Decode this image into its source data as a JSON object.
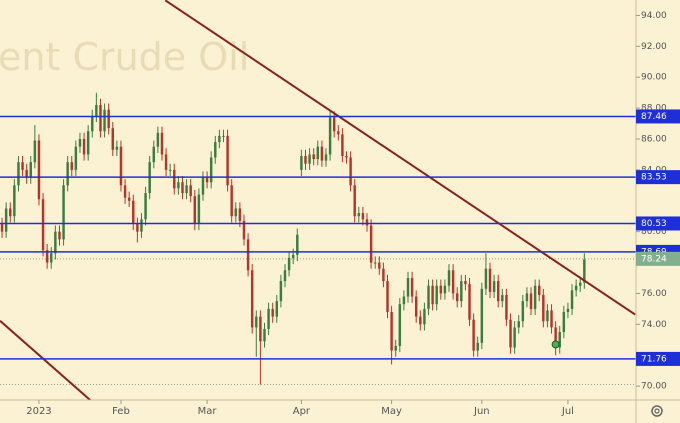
{
  "chart_data": {
    "type": "candlestick",
    "watermark": "ent Crude Oil",
    "up_color": "#3b7d3f",
    "down_color": "#b3362a",
    "level_color": "#1f2fd8",
    "trend_color": "#8b1e1e",
    "last_color": "#82b08f",
    "ylim": [
      69.1,
      95
    ],
    "yticks": [
      {
        "value": 70,
        "label": "70.00"
      },
      {
        "value": 74,
        "label": "74.00"
      },
      {
        "value": 76,
        "label": "76.00"
      },
      {
        "value": 80,
        "label": "80.00"
      },
      {
        "value": 84,
        "label": "84.00"
      },
      {
        "value": 86,
        "label": "86.00"
      },
      {
        "value": 88,
        "label": "88.00"
      },
      {
        "value": 90,
        "label": "90.00"
      },
      {
        "value": 92,
        "label": "92.00"
      },
      {
        "value": 94,
        "label": "94.00"
      }
    ],
    "xlim": [
      -0.5,
      154.6
    ],
    "xticks": [
      {
        "value": 9,
        "label": "2023"
      },
      {
        "value": 29,
        "label": "Feb"
      },
      {
        "value": 50,
        "label": "Mar"
      },
      {
        "value": 73,
        "label": "Apr"
      },
      {
        "value": 95,
        "label": "May"
      },
      {
        "value": 117,
        "label": "Jun"
      },
      {
        "value": 138,
        "label": "Jul"
      }
    ],
    "levels": [
      87.46,
      83.53,
      80.53,
      78.69,
      71.76
    ],
    "last_price": 78.24,
    "period_low": 70.1,
    "marker": {
      "x": 135,
      "y": 72.7
    },
    "trendlines": [
      {
        "from": [
          39.8,
          94.98
        ],
        "to": [
          154.4,
          74.63
        ]
      },
      {
        "from": [
          -0.5,
          74.23
        ],
        "to": [
          28.8,
          67.39
        ]
      }
    ],
    "open": [
      80.5,
      80.0,
      81.5,
      81.0,
      83.0,
      84.5,
      84.0,
      83.5,
      84.5,
      85.9,
      82.1,
      78.8,
      78.0,
      78.6,
      80.0,
      79.5,
      83.0,
      84.5,
      84.0,
      85.5,
      86.0,
      85.0,
      86.5,
      87.5,
      88.2,
      86.5,
      87.9,
      86.7,
      85.3,
      85.5,
      83.0,
      82.2,
      82.0,
      80.5,
      80.0,
      80.8,
      82.5,
      84.5,
      85.5,
      86.4,
      85.0,
      84.0,
      84.0,
      82.8,
      83.2,
      82.5,
      83.0,
      82.3,
      80.5,
      82.4,
      83.5,
      83.2,
      84.8,
      85.8,
      86.2,
      86.2,
      83.0,
      81.0,
      81.5,
      80.7,
      79.5,
      77.5,
      73.8,
      74.5,
      72.9,
      73.7,
      75.0,
      74.5,
      75.5,
      76.8,
      77.5,
      78.3,
      78.5,
      84.0,
      84.9,
      84.4,
      85.0,
      84.7,
      85.5,
      84.6,
      85.0,
      87.4,
      86.5,
      86.3,
      84.9,
      84.8,
      83.0,
      81.0,
      81.2,
      80.8,
      80.4,
      78.0,
      78.0,
      77.6,
      76.8,
      74.8,
      72.3,
      72.6,
      75.3,
      75.8,
      77.0,
      75.8,
      74.5,
      74.0,
      75.0,
      76.5,
      75.3,
      76.5,
      76.0,
      76.5,
      77.5,
      76.0,
      75.5,
      76.8,
      76.6,
      74.3,
      72.3,
      72.8,
      76.3,
      77.6,
      76.1,
      76.8,
      75.5,
      75.9,
      74.3,
      72.5,
      73.8,
      74.2,
      75.5,
      76.0,
      75.0,
      76.5,
      75.9,
      74.2,
      74.9,
      73.8,
      72.5,
      73.5,
      74.8,
      75.0,
      76.2,
      76.5,
      76.7
    ],
    "high": [
      80.9,
      81.9,
      81.9,
      83.4,
      84.9,
      84.9,
      84.4,
      84.9,
      86.9,
      86.3,
      82.5,
      79.2,
      79.0,
      80.4,
      80.4,
      83.4,
      84.9,
      84.9,
      85.9,
      86.4,
      86.4,
      86.9,
      87.9,
      89.0,
      88.6,
      88.3,
      88.3,
      87.1,
      85.9,
      85.9,
      83.4,
      82.6,
      82.4,
      80.9,
      81.2,
      82.9,
      84.9,
      85.9,
      86.8,
      86.8,
      85.4,
      84.4,
      84.4,
      83.6,
      83.6,
      83.4,
      83.4,
      82.7,
      82.8,
      83.9,
      83.9,
      85.2,
      86.2,
      86.6,
      86.6,
      86.6,
      83.4,
      81.9,
      81.9,
      81.1,
      79.9,
      77.9,
      74.9,
      74.9,
      74.1,
      75.4,
      75.4,
      75.9,
      77.2,
      77.9,
      78.7,
      78.9,
      80.2,
      85.3,
      85.3,
      85.4,
      85.4,
      85.9,
      85.9,
      85.4,
      87.8,
      87.8,
      86.9,
      86.7,
      85.2,
      85.2,
      83.4,
      81.6,
      81.6,
      81.2,
      80.8,
      78.4,
      78.4,
      78.0,
      77.2,
      75.2,
      73.0,
      75.7,
      76.2,
      77.4,
      77.4,
      76.2,
      74.9,
      75.4,
      76.9,
      76.9,
      76.9,
      76.9,
      76.9,
      77.9,
      77.9,
      76.4,
      77.2,
      77.2,
      77.0,
      74.7,
      73.2,
      76.7,
      78.6,
      78.0,
      77.2,
      77.2,
      76.3,
      76.3,
      74.7,
      74.2,
      74.6,
      75.9,
      76.4,
      76.4,
      76.9,
      76.9,
      76.3,
      75.3,
      75.3,
      74.2,
      73.9,
      75.2,
      75.4,
      76.6,
      76.9,
      77.1,
      78.6
    ],
    "low": [
      79.6,
      79.6,
      80.6,
      80.6,
      82.6,
      83.6,
      83.1,
      83.1,
      84.1,
      81.7,
      78.4,
      77.6,
      77.6,
      78.2,
      79.1,
      79.1,
      82.6,
      83.6,
      83.6,
      85.1,
      84.6,
      84.6,
      86.1,
      87.1,
      86.1,
      86.1,
      86.3,
      84.9,
      84.9,
      82.6,
      81.8,
      81.6,
      80.1,
      79.3,
      79.6,
      80.4,
      82.1,
      84.1,
      85.1,
      84.6,
      83.6,
      83.6,
      82.4,
      82.4,
      82.1,
      82.1,
      81.9,
      80.1,
      80.1,
      82.0,
      82.8,
      82.8,
      84.4,
      85.4,
      85.8,
      82.6,
      80.6,
      80.6,
      80.3,
      79.1,
      77.1,
      73.4,
      71.9,
      70.1,
      72.5,
      73.3,
      74.1,
      74.1,
      75.1,
      76.4,
      77.1,
      77.9,
      78.1,
      83.6,
      84.0,
      84.0,
      84.3,
      84.3,
      84.2,
      84.2,
      84.6,
      86.1,
      85.9,
      84.5,
      84.4,
      82.6,
      80.6,
      80.6,
      80.4,
      80.0,
      77.6,
      77.6,
      77.2,
      76.4,
      74.4,
      71.4,
      71.9,
      72.2,
      74.9,
      75.4,
      75.4,
      74.1,
      73.6,
      73.6,
      74.6,
      74.9,
      74.9,
      75.6,
      75.6,
      76.1,
      75.6,
      75.1,
      75.1,
      76.2,
      73.9,
      71.9,
      71.9,
      72.4,
      75.9,
      75.7,
      75.7,
      75.1,
      75.1,
      73.9,
      72.1,
      72.1,
      73.4,
      73.8,
      75.1,
      74.6,
      74.6,
      75.5,
      73.8,
      73.8,
      73.4,
      72.0,
      72.1,
      73.1,
      74.4,
      74.6,
      75.8,
      76.1,
      76.3
    ],
    "close": [
      80.0,
      81.5,
      81.0,
      83.0,
      84.5,
      84.0,
      83.5,
      84.5,
      85.9,
      82.1,
      78.8,
      78.0,
      78.6,
      80.0,
      79.5,
      83.0,
      84.5,
      84.0,
      85.5,
      86.0,
      85.0,
      86.5,
      87.5,
      88.2,
      86.5,
      87.9,
      86.7,
      85.3,
      85.5,
      83.0,
      82.2,
      82.0,
      80.5,
      80.0,
      80.8,
      82.5,
      84.5,
      85.5,
      86.4,
      85.0,
      84.0,
      84.0,
      82.8,
      83.2,
      82.5,
      83.0,
      82.3,
      80.5,
      82.4,
      83.5,
      83.2,
      84.8,
      85.8,
      86.2,
      86.2,
      83.0,
      81.0,
      81.5,
      80.7,
      79.5,
      77.5,
      73.8,
      74.5,
      72.9,
      73.7,
      75.0,
      74.5,
      75.5,
      76.8,
      77.5,
      78.3,
      78.5,
      79.8,
      84.9,
      84.4,
      85.0,
      84.7,
      85.5,
      84.6,
      85.0,
      87.4,
      86.5,
      86.3,
      84.9,
      84.8,
      83.0,
      81.0,
      81.2,
      80.8,
      80.4,
      78.0,
      78.0,
      77.6,
      76.8,
      74.8,
      72.3,
      72.6,
      75.3,
      75.8,
      77.0,
      75.8,
      74.5,
      74.0,
      75.0,
      76.5,
      75.3,
      76.5,
      76.0,
      76.5,
      77.5,
      76.0,
      75.5,
      76.8,
      76.6,
      74.3,
      72.3,
      72.8,
      76.3,
      77.6,
      76.1,
      76.8,
      75.5,
      75.9,
      74.3,
      72.5,
      73.8,
      74.2,
      75.5,
      76.0,
      75.0,
      76.5,
      75.9,
      74.2,
      74.9,
      73.8,
      72.5,
      73.5,
      74.8,
      75.0,
      76.2,
      76.5,
      76.7,
      78.2
    ]
  }
}
